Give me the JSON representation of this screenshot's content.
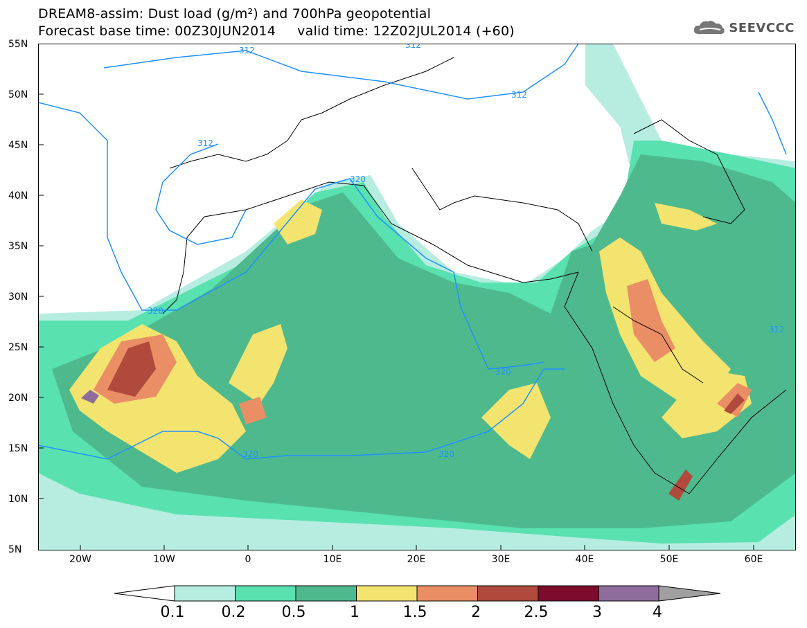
{
  "title": {
    "line1": "DREAM8-assim: Dust load (g/m²) and 700hPa geopotential",
    "line2": "Forecast base time: 00Z30JUN2014     valid time: 12Z02JUL2014 (+60)"
  },
  "logo": {
    "text": "SEEVCCC",
    "icon": "cloud-icon"
  },
  "map": {
    "lat_labels": [
      "55N",
      "50N",
      "45N",
      "40N",
      "35N",
      "30N",
      "25N",
      "20N",
      "15N",
      "10N",
      "5N"
    ],
    "lon_labels": [
      "20W",
      "10W",
      "0",
      "10E",
      "20E",
      "30E",
      "40E",
      "50E",
      "60E"
    ],
    "contour_labels": [
      "312",
      "312",
      "312",
      "312",
      "320",
      "320",
      "320",
      "320",
      "320",
      "312"
    ]
  },
  "legend": {
    "levels": [
      "0.1",
      "0.2",
      "0.5",
      "1",
      "1.5",
      "2",
      "2.5",
      "3",
      "4"
    ],
    "colors": [
      "#b7ede1",
      "#59e1b0",
      "#4fb98e",
      "#f2e46e",
      "#ea8e66",
      "#b04a3c",
      "#7c0b2c",
      "#8e6d9c"
    ],
    "under_color": "#ffffff",
    "over_color": "#a0a0a0"
  }
}
